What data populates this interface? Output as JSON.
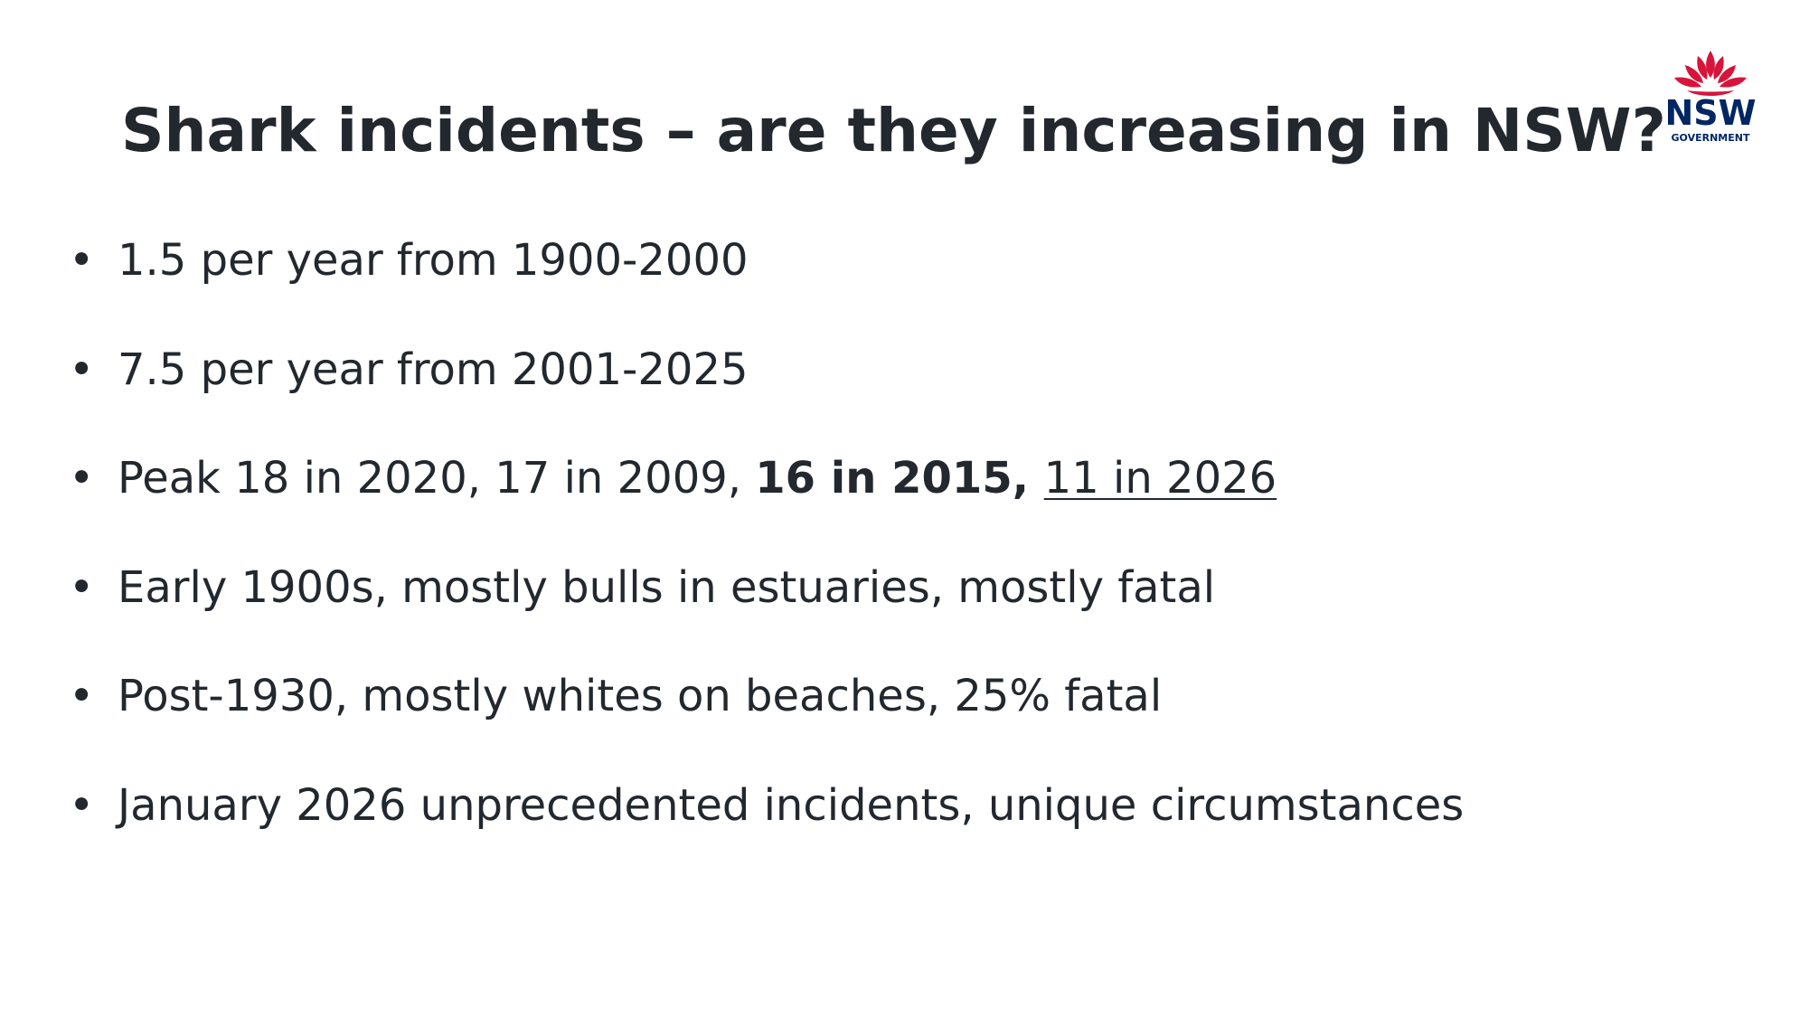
{
  "title": "Shark incidents – are they increasing in NSW?",
  "bullets": [
    [
      {
        "text": "1.5 per year from 1900-2000"
      }
    ],
    [
      {
        "text": "7.5 per year from 2001-2025"
      }
    ],
    [
      {
        "text": "Peak 18 in 2020, 17 in 2009, "
      },
      {
        "text": "16 in 2015, ",
        "bold": true
      },
      {
        "text": "11 in 2026",
        "underline": true
      }
    ],
    [
      {
        "text": "Early 1900s, mostly bulls in estuaries, mostly fatal"
      }
    ],
    [
      {
        "text": "Post-1930, mostly whites on beaches, 25% fatal"
      }
    ],
    [
      {
        "text": "January 2026 unprecedented incidents, unique circumstances"
      }
    ]
  ],
  "logo": {
    "name": "NSW",
    "subtitle": "GOVERNMENT"
  }
}
